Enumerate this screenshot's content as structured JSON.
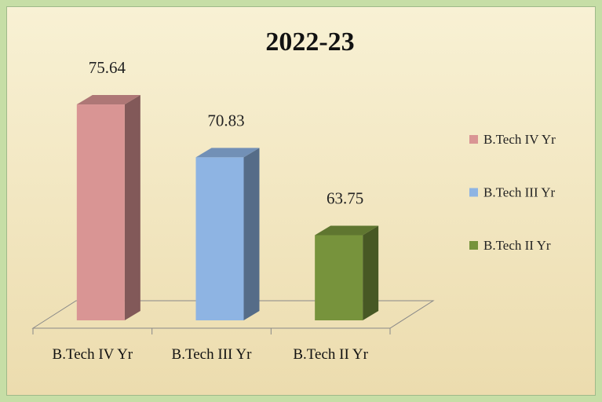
{
  "chart_data": {
    "type": "bar3d",
    "title": "2022-23",
    "categories": [
      "B.Tech IV Yr",
      "B.Tech III Yr",
      "B.Tech II Yr"
    ],
    "values": [
      75.64,
      70.83,
      63.75
    ],
    "colors": [
      "#d99594",
      "#8eb4e3",
      "#77933c"
    ],
    "ylim": [
      56,
      77
    ]
  }
}
